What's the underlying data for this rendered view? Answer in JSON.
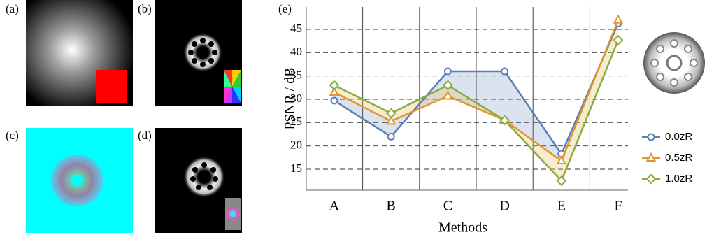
{
  "panel_labels": [
    "(a)",
    "(b)",
    "(c)",
    "(d)",
    "(e)"
  ],
  "chart_data": {
    "type": "line",
    "y_label": "PSNR / dB",
    "x_label": "Methods",
    "categories": [
      "A",
      "B",
      "C",
      "D",
      "E",
      "F"
    ],
    "series": [
      {
        "name": "0.0zR",
        "color": "#5b7fb5",
        "marker": "circle",
        "values": [
          29.7,
          22,
          36,
          36,
          18.3,
          46.3
        ]
      },
      {
        "name": "0.5zR",
        "color": "#e0962c",
        "marker": "triangle",
        "values": [
          31.5,
          25.3,
          30.7,
          25.5,
          16.8,
          47
        ]
      },
      {
        "name": "1.0zR",
        "color": "#8bab3e",
        "marker": "diamond",
        "values": [
          33,
          27,
          33,
          25.5,
          12.5,
          42.7
        ]
      }
    ],
    "ylim": [
      10.5,
      49.8
    ],
    "yticks": [
      15,
      20,
      25,
      30,
      35,
      40,
      45
    ],
    "grid": true,
    "legend": "right"
  }
}
